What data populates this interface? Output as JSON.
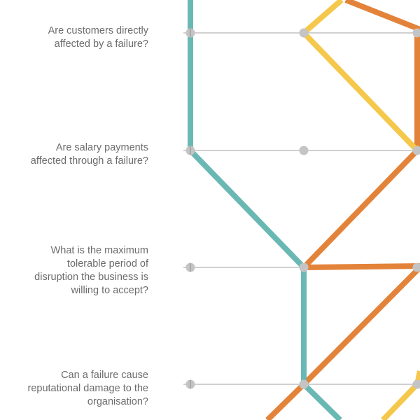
{
  "questions": [
    {
      "id": "q0",
      "text": "Are customers directly\naffected by a failure?"
    },
    {
      "id": "q1",
      "text": "Are salary payments\naffected through a failure?"
    },
    {
      "id": "q2",
      "text": "What is the maximum\ntolerable period of\ndisruption the business is\nwilling to accept?"
    },
    {
      "id": "q3",
      "text": "Can a failure cause\nreputational damage to the\norganisation?"
    }
  ],
  "colors": {
    "teal": "#6ab8b4",
    "yellow": "#f5c84c",
    "orange": "#e3833a",
    "axis": "#b5b5b5",
    "node": "#c4c4c4"
  },
  "paths": [
    {
      "color": "teal",
      "answers": [
        0,
        0,
        1,
        1
      ]
    },
    {
      "color": "yellow",
      "answers": [
        1,
        2,
        null,
        2
      ]
    },
    {
      "color": "orange",
      "answers": [
        2,
        2,
        1,
        1
      ]
    }
  ]
}
